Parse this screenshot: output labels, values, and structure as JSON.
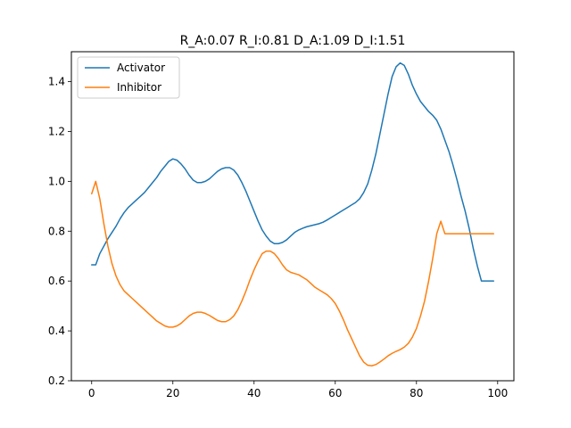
{
  "chart_data": {
    "type": "line",
    "title": "R_A:0.07 R_I:0.81 D_A:1.09 D_I:1.51",
    "xlabel": "",
    "ylabel": "",
    "xlim": [
      -5,
      104
    ],
    "ylim": [
      0.2,
      1.52
    ],
    "xticks": [
      0,
      20,
      40,
      60,
      80,
      100
    ],
    "yticks": [
      0.2,
      0.4,
      0.6,
      0.8,
      1.0,
      1.2,
      1.4
    ],
    "xtick_labels": [
      "0",
      "20",
      "40",
      "60",
      "80",
      "100"
    ],
    "ytick_labels": [
      "0.2",
      "0.4",
      "0.6",
      "0.8",
      "1.0",
      "1.2",
      "1.4"
    ],
    "grid": false,
    "legend_position": "top-left",
    "x": [
      0,
      1,
      2,
      3,
      4,
      5,
      6,
      7,
      8,
      9,
      10,
      11,
      12,
      13,
      14,
      15,
      16,
      17,
      18,
      19,
      20,
      21,
      22,
      23,
      24,
      25,
      26,
      27,
      28,
      29,
      30,
      31,
      32,
      33,
      34,
      35,
      36,
      37,
      38,
      39,
      40,
      41,
      42,
      43,
      44,
      45,
      46,
      47,
      48,
      49,
      50,
      51,
      52,
      53,
      54,
      55,
      56,
      57,
      58,
      59,
      60,
      61,
      62,
      63,
      64,
      65,
      66,
      67,
      68,
      69,
      70,
      71,
      72,
      73,
      74,
      75,
      76,
      77,
      78,
      79,
      80,
      81,
      82,
      83,
      84,
      85,
      86,
      87,
      88,
      89,
      90,
      91,
      92,
      93,
      94,
      95,
      96,
      97,
      98,
      99
    ],
    "series": [
      {
        "name": "Activator",
        "color": "#1f77b4",
        "values": [
          0.665,
          0.665,
          0.71,
          0.74,
          0.77,
          0.795,
          0.82,
          0.85,
          0.875,
          0.895,
          0.91,
          0.925,
          0.94,
          0.955,
          0.975,
          0.995,
          1.015,
          1.04,
          1.06,
          1.08,
          1.09,
          1.085,
          1.07,
          1.05,
          1.025,
          1.005,
          0.995,
          0.995,
          1.0,
          1.01,
          1.025,
          1.04,
          1.05,
          1.055,
          1.055,
          1.045,
          1.025,
          0.995,
          0.96,
          0.92,
          0.88,
          0.84,
          0.805,
          0.78,
          0.76,
          0.75,
          0.75,
          0.755,
          0.765,
          0.78,
          0.795,
          0.805,
          0.812,
          0.818,
          0.822,
          0.826,
          0.83,
          0.836,
          0.845,
          0.855,
          0.865,
          0.875,
          0.885,
          0.895,
          0.905,
          0.915,
          0.93,
          0.955,
          0.99,
          1.045,
          1.11,
          1.19,
          1.27,
          1.35,
          1.42,
          1.46,
          1.475,
          1.465,
          1.43,
          1.385,
          1.35,
          1.32,
          1.3,
          1.28,
          1.265,
          1.245,
          1.21,
          1.165,
          1.12,
          1.065,
          1.005,
          0.94,
          0.88,
          0.81,
          0.73,
          0.66,
          0.6,
          0.6,
          0.6,
          0.6
        ]
      },
      {
        "name": "Inhibitor",
        "color": "#ff7f0e",
        "values": [
          0.95,
          1.0,
          0.93,
          0.83,
          0.74,
          0.67,
          0.62,
          0.585,
          0.56,
          0.545,
          0.53,
          0.515,
          0.5,
          0.485,
          0.47,
          0.455,
          0.44,
          0.43,
          0.42,
          0.415,
          0.415,
          0.42,
          0.43,
          0.445,
          0.46,
          0.47,
          0.475,
          0.475,
          0.47,
          0.462,
          0.452,
          0.442,
          0.437,
          0.437,
          0.445,
          0.46,
          0.485,
          0.52,
          0.56,
          0.605,
          0.645,
          0.68,
          0.71,
          0.72,
          0.72,
          0.71,
          0.69,
          0.665,
          0.645,
          0.635,
          0.63,
          0.625,
          0.615,
          0.605,
          0.59,
          0.575,
          0.565,
          0.555,
          0.545,
          0.53,
          0.51,
          0.48,
          0.445,
          0.405,
          0.37,
          0.335,
          0.3,
          0.275,
          0.262,
          0.26,
          0.265,
          0.275,
          0.287,
          0.3,
          0.31,
          0.318,
          0.325,
          0.335,
          0.35,
          0.375,
          0.41,
          0.46,
          0.52,
          0.6,
          0.69,
          0.79,
          0.84,
          0.79,
          0.79,
          0.79,
          0.79,
          0.79,
          0.79,
          0.79,
          0.79,
          0.79,
          0.79,
          0.79,
          0.79,
          0.79
        ]
      }
    ]
  }
}
